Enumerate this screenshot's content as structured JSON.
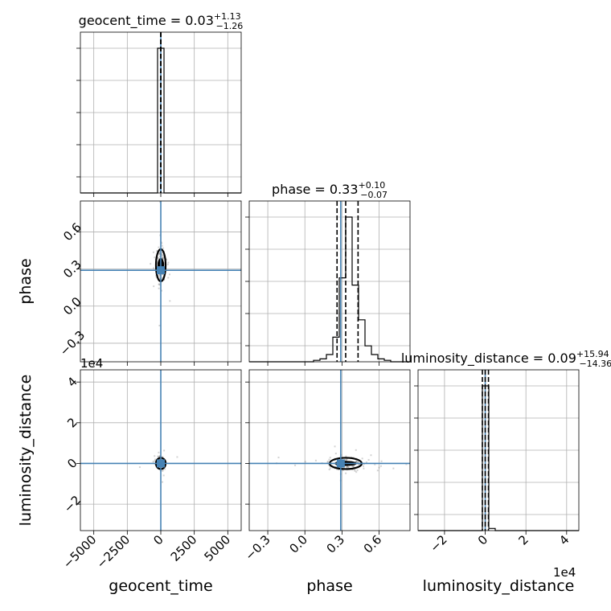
{
  "chart_data": {
    "type": "corner",
    "parameters": [
      {
        "name": "geocent_time",
        "axis_label": "geocent_time",
        "title": {
          "main": "geocent_time = 0.03",
          "sup": "+1.13",
          "sub": "−1.26"
        },
        "median": 0.03,
        "err_plus": 1.13,
        "err_minus": 1.26,
        "range": [
          -6000,
          6000
        ],
        "ticks": [
          -5000,
          -2500,
          0,
          2500,
          5000
        ],
        "tick_labels": [
          "−5000",
          "−2500",
          "0",
          "2500",
          "5000"
        ],
        "offset": ""
      },
      {
        "name": "phase",
        "axis_label": "phase",
        "title": {
          "main": "phase = 0.33",
          "sup": "+0.10",
          "sub": "−0.07"
        },
        "median": 0.33,
        "err_plus": 0.1,
        "err_minus": 0.07,
        "range": [
          -0.45,
          0.85
        ],
        "ticks": [
          -0.3,
          0.0,
          0.3,
          0.6
        ],
        "tick_labels": [
          "−0.3",
          "0.0",
          "0.3",
          "0.6"
        ],
        "offset": ""
      },
      {
        "name": "luminosity_distance",
        "axis_label": "luminosity_distance",
        "title": {
          "main": "luminosity_distance = 0.09",
          "sup": "+15.94",
          "sub": "−14.36"
        },
        "median": 0.09,
        "err_plus": 15.94,
        "err_minus": 14.36,
        "range": [
          -3.3,
          4.6
        ],
        "ticks": [
          -2,
          0,
          2,
          4
        ],
        "tick_labels": [
          "−2",
          "0",
          "2",
          "4"
        ],
        "offset": "1e4"
      }
    ],
    "truths": [
      0,
      0.29,
      0
    ],
    "truth_color": "#4682b4",
    "histograms": [
      {
        "bins": [
          -6000,
          -5520,
          -5040,
          -4560,
          -4080,
          -3600,
          -3120,
          -2640,
          -2160,
          -1680,
          -1200,
          -720,
          -240,
          240,
          720,
          1200,
          1680,
          2160,
          2640,
          3120,
          3600,
          4080,
          4560,
          5040,
          5520,
          6000
        ],
        "counts": [
          0,
          0,
          0,
          0,
          0,
          0,
          0,
          0,
          0,
          0,
          0,
          0,
          1.0,
          0,
          0,
          0,
          0,
          0,
          0,
          0,
          0,
          0,
          0,
          0,
          0
        ],
        "quantiles": [
          -1.23,
          0.03,
          1.16
        ]
      },
      {
        "bins": [
          -0.45,
          -0.398,
          -0.346,
          -0.294,
          -0.242,
          -0.19,
          -0.138,
          -0.086,
          -0.034,
          0.018,
          0.07,
          0.122,
          0.174,
          0.226,
          0.278,
          0.33,
          0.382,
          0.434,
          0.486,
          0.538,
          0.59,
          0.642,
          0.694,
          0.746,
          0.798,
          0.85
        ],
        "counts": [
          0,
          0,
          0,
          0,
          0,
          0,
          0,
          0,
          0,
          0,
          0.01,
          0.02,
          0.05,
          0.17,
          0.58,
          1.0,
          0.53,
          0.29,
          0.11,
          0.05,
          0.02,
          0.01,
          0,
          0,
          0
        ],
        "quantiles": [
          0.26,
          0.33,
          0.43
        ]
      },
      {
        "bins": [
          -3.3,
          -2.984,
          -2.668,
          -2.352,
          -2.036,
          -1.72,
          -1.404,
          -1.088,
          -0.772,
          -0.456,
          -0.14,
          0.176,
          0.492,
          0.808,
          1.124,
          1.44,
          1.756,
          2.072,
          2.388,
          2.704,
          3.02,
          3.336,
          3.652,
          3.968,
          4.284,
          4.6
        ],
        "counts": [
          0,
          0,
          0,
          0,
          0,
          0,
          0,
          0,
          0,
          0,
          1.0,
          0.015,
          0,
          0,
          0,
          0,
          0,
          0,
          0,
          0,
          0,
          0,
          0,
          0,
          0
        ],
        "quantiles": [
          -0.14,
          0.0,
          0.16
        ]
      }
    ],
    "grid": true
  }
}
